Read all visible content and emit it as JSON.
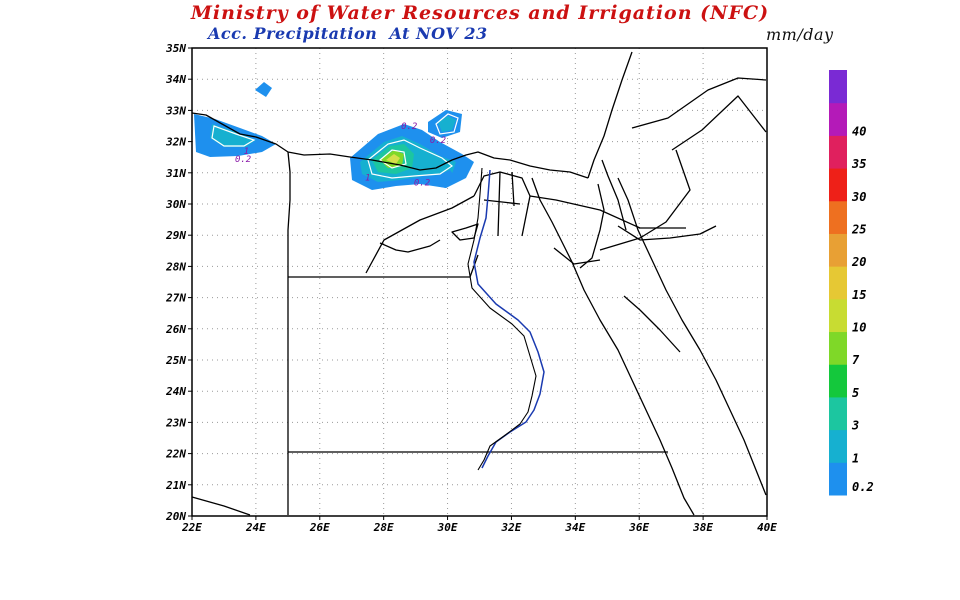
{
  "header": {
    "title": "Ministry of Water Resources and Irrigation (NFC)",
    "subtitle_prefix": "Acc. Precipitation",
    "subtitle_at": "At",
    "subtitle_date": "NOV 23",
    "units": "mm/day"
  },
  "map": {
    "lon_range": [
      22,
      40
    ],
    "lat_range": [
      20,
      35
    ],
    "x_ticks": [
      "22E",
      "24E",
      "26E",
      "28E",
      "30E",
      "32E",
      "34E",
      "36E",
      "38E",
      "40E"
    ],
    "y_ticks": [
      "20N",
      "21N",
      "22N",
      "23N",
      "24N",
      "25N",
      "26N",
      "27N",
      "28N",
      "29N",
      "30N",
      "31N",
      "32N",
      "33N",
      "34N",
      "35N"
    ],
    "grid": "dotted",
    "contour_labels": [
      {
        "text": "0.2",
        "lon": 23.6,
        "lat": 31.35
      },
      {
        "text": "1",
        "lon": 23.7,
        "lat": 31.6
      },
      {
        "text": "0.2",
        "lon": 28.8,
        "lat": 32.4
      },
      {
        "text": "0.2",
        "lon": 29.7,
        "lat": 31.95
      },
      {
        "text": "1",
        "lon": 27.5,
        "lat": 30.75
      },
      {
        "text": "0.2",
        "lon": 29.2,
        "lat": 30.6
      }
    ]
  },
  "legend": {
    "labels": [
      "0.2",
      "1",
      "3",
      "5",
      "7",
      "10",
      "15",
      "20",
      "25",
      "30",
      "35",
      "40"
    ],
    "colors": [
      "#1e90ee",
      "#16b0d0",
      "#1cc6a0",
      "#14c83c",
      "#7fd828",
      "#c8dc32",
      "#e6c834",
      "#e8a034",
      "#ee7020",
      "#ee2018",
      "#e0205e",
      "#b41ab8",
      "#7a2ad4"
    ]
  }
}
